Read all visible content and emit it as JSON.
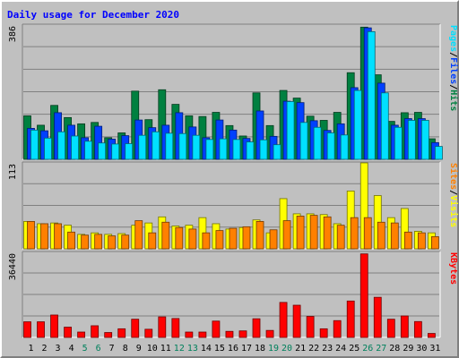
{
  "chart_data": {
    "type": "bar",
    "title": "Daily usage for December 2020",
    "x": [
      "1",
      "2",
      "3",
      "4",
      "5",
      "6",
      "7",
      "8",
      "9",
      "10",
      "11",
      "12",
      "13",
      "14",
      "15",
      "16",
      "17",
      "18",
      "19",
      "20",
      "21",
      "22",
      "23",
      "24",
      "25",
      "26",
      "27",
      "28",
      "29",
      "30",
      "31"
    ],
    "weekend_days": [
      "5",
      "6",
      "12",
      "13",
      "19",
      "20",
      "26",
      "27"
    ],
    "colors": {
      "hits": "#008040",
      "files": "#0040ff",
      "pages": "#00e0ff",
      "visits": "#ffff00",
      "sites": "#ff8000",
      "kbytes": "#ff0000",
      "title": "#0000ff",
      "weekend": "#00805c",
      "weekday": "#000000"
    },
    "panels": [
      {
        "name": "hits-files-pages",
        "ymax": 386,
        "ymax_label": "386",
        "legend": [
          {
            "label": "Hits",
            "color": "#008040"
          },
          {
            "label": "/",
            "color": "#000000"
          },
          {
            "label": "Files",
            "color": "#0040ff"
          },
          {
            "label": "/",
            "color": "#000000"
          },
          {
            "label": "Pages",
            "color": "#00e0ff"
          }
        ],
        "series": [
          {
            "name": "Hits",
            "color": "#008040",
            "values": [
              125,
              98,
              155,
              120,
              102,
              106,
              62,
              76,
              196,
              114,
              200,
              158,
              125,
              123,
              135,
              97,
              67,
              191,
              97,
              198,
              176,
              124,
              112,
              135,
              249,
              380,
              243,
              109,
              134,
              135,
              59
            ]
          },
          {
            "name": "Files",
            "color": "#0040ff",
            "values": [
              89,
              82,
              134,
              98,
              62,
              95,
              58,
              68,
              113,
              91,
              98,
              134,
              93,
              62,
              113,
              84,
              60,
              139,
              66,
              167,
              163,
              111,
              83,
              102,
              206,
              378,
              219,
              98,
              117,
              117,
              48
            ]
          },
          {
            "name": "Pages",
            "color": "#00e0ff",
            "values": [
              84,
              61,
              79,
              67,
              52,
              47,
              44,
              45,
              69,
              79,
              75,
              74,
              69,
              57,
              59,
              57,
              50,
              56,
              42,
              166,
              106,
              92,
              76,
              70,
              198,
              367,
              191,
              92,
              112,
              112,
              37
            ]
          }
        ]
      },
      {
        "name": "visits-sites",
        "ymax": 113,
        "ymax_label": "113",
        "legend": [
          {
            "label": "Visits",
            "color": "#ffff00"
          },
          {
            "label": "/",
            "color": "#000000"
          },
          {
            "label": "Sites",
            "color": "#ff8000"
          }
        ],
        "series": [
          {
            "name": "Visits",
            "color": "#ffff00",
            "values": [
              36,
              33,
              34,
              31,
              19,
              21,
              19,
              20,
              31,
              34,
              42,
              30,
              31,
              41,
              33,
              26,
              28,
              38,
              21,
              66,
              46,
              46,
              45,
              33,
              76,
              113,
              70,
              41,
              53,
              23,
              21
            ]
          },
          {
            "name": "Sites",
            "color": "#ff8000",
            "values": [
              36,
              33,
              33,
              22,
              18,
              19,
              17,
              18,
              37,
              21,
              35,
              28,
              26,
              21,
              24,
              27,
              29,
              36,
              25,
              37,
              43,
              44,
              42,
              31,
              41,
              41,
              35,
              34,
              22,
              21,
              16
            ]
          }
        ]
      },
      {
        "name": "kbytes",
        "ymax": 36440,
        "ymax_label": "36440",
        "legend": [
          {
            "label": "KBytes",
            "color": "#ff0000"
          }
        ],
        "series": [
          {
            "name": "KBytes",
            "color": "#ff0000",
            "values": [
              6700,
              6700,
              9600,
              4400,
              2300,
              5000,
              2100,
              3700,
              7800,
              3500,
              8800,
              8100,
              2300,
              2300,
              7000,
              2600,
              2800,
              8000,
              3000,
              15000,
              13800,
              9000,
              3700,
              7200,
              15600,
              35800,
              17200,
              7800,
              9200,
              6800,
              1700
            ]
          }
        ]
      }
    ]
  }
}
